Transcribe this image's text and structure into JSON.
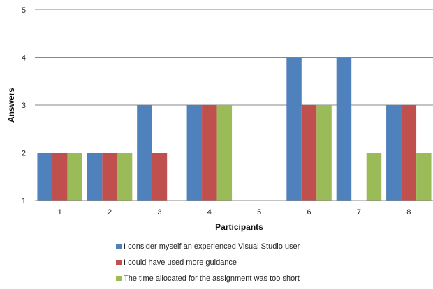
{
  "chart_data": {
    "type": "bar",
    "xlabel": "Participants",
    "ylabel": "Answers",
    "categories": [
      "1",
      "2",
      "3",
      "4",
      "5",
      "6",
      "7",
      "8"
    ],
    "ylim": [
      1,
      5
    ],
    "yticks": [
      "1",
      "2",
      "3",
      "4",
      "5"
    ],
    "grid": true,
    "legend_position": "bottom",
    "series": [
      {
        "name": "I consider myself an experienced Visual Studio user",
        "color": "#4F81BD",
        "values": [
          2,
          2,
          3,
          3,
          null,
          4,
          4,
          3
        ]
      },
      {
        "name": "I could have used more guidance",
        "color": "#C0504D",
        "values": [
          2,
          2,
          2,
          3,
          null,
          3,
          null,
          3
        ]
      },
      {
        "name": "The time allocated for the assignment was too short",
        "color": "#9BBB59",
        "values": [
          2,
          2,
          null,
          3,
          null,
          3,
          2,
          2
        ]
      }
    ]
  }
}
